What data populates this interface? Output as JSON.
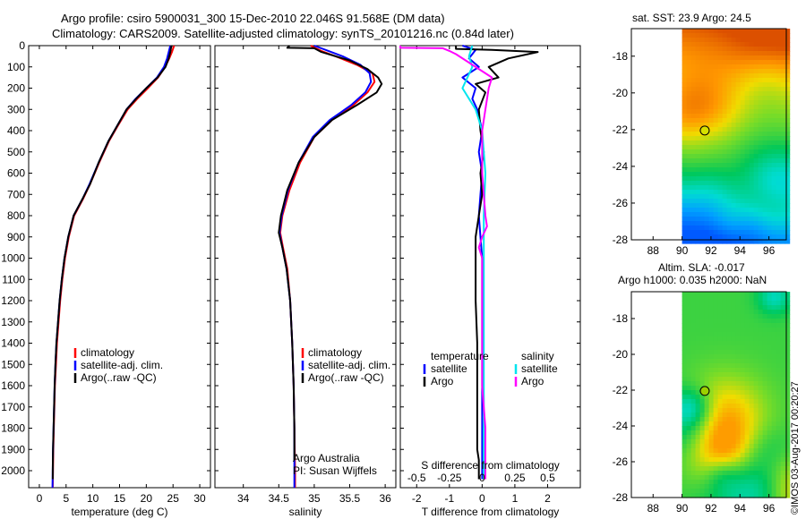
{
  "header": {
    "line1": "Argo profile: csiro 5900031_300 15-Dec-2010 22.046S 91.568E (DM data)",
    "line2": "Climatology: CARS2009. Satellite-adjusted climatology: synTS_20101216.nc (0.84d later)"
  },
  "colors": {
    "clim": "#ff0000",
    "sat": "#0000ff",
    "argo": "#000000",
    "sat_sal": "#00e5ee",
    "argo_sal": "#ff00ff"
  },
  "depth_ticks": [
    0,
    100,
    200,
    300,
    400,
    500,
    600,
    700,
    800,
    900,
    1000,
    1100,
    1200,
    1300,
    1400,
    1500,
    1600,
    1700,
    1800,
    1900,
    2000
  ],
  "chart_data": [
    {
      "id": "temperature",
      "type": "line",
      "xlabel": "temperature (deg C)",
      "ylabel": "depth",
      "xlim": [
        -2,
        32
      ],
      "ylim": [
        0,
        2080
      ],
      "xticks": [
        0,
        5,
        10,
        15,
        20,
        25,
        30
      ],
      "legend": [
        "climatology",
        "satellite-adj. clim.",
        "Argo(..raw -QC)"
      ],
      "series": [
        {
          "name": "climatology",
          "color": "#ff0000",
          "points": [
            [
              25.2,
              0
            ],
            [
              24.8,
              30
            ],
            [
              24.3,
              60
            ],
            [
              23.5,
              100
            ],
            [
              22.2,
              150
            ],
            [
              20.3,
              200
            ],
            [
              18.3,
              250
            ],
            [
              16.5,
              300
            ],
            [
              14.6,
              380
            ],
            [
              13.0,
              450
            ],
            [
              11.2,
              550
            ],
            [
              9.5,
              650
            ],
            [
              8.2,
              720
            ],
            [
              6.5,
              800
            ],
            [
              5.5,
              900
            ],
            [
              4.8,
              1000
            ],
            [
              4.3,
              1100
            ],
            [
              3.9,
              1200
            ],
            [
              3.6,
              1300
            ],
            [
              3.3,
              1400
            ],
            [
              3.1,
              1500
            ],
            [
              2.9,
              1600
            ],
            [
              2.8,
              1700
            ],
            [
              2.7,
              1800
            ],
            [
              2.6,
              1900
            ],
            [
              2.55,
              2000
            ],
            [
              2.5,
              2080
            ]
          ]
        },
        {
          "name": "satellite-adj. clim.",
          "color": "#0000ff",
          "points": [
            [
              24.5,
              0
            ],
            [
              24.2,
              30
            ],
            [
              23.9,
              60
            ],
            [
              23.3,
              100
            ],
            [
              22.0,
              150
            ],
            [
              20.0,
              200
            ],
            [
              18.0,
              250
            ],
            [
              16.3,
              300
            ],
            [
              14.5,
              380
            ],
            [
              12.9,
              450
            ],
            [
              11.1,
              550
            ],
            [
              9.4,
              650
            ],
            [
              8.1,
              720
            ],
            [
              6.4,
              800
            ],
            [
              5.4,
              900
            ],
            [
              4.7,
              1000
            ],
            [
              4.2,
              1100
            ],
            [
              3.8,
              1200
            ],
            [
              3.5,
              1300
            ],
            [
              3.2,
              1400
            ],
            [
              3.0,
              1500
            ],
            [
              2.85,
              1600
            ],
            [
              2.75,
              1700
            ],
            [
              2.65,
              1800
            ],
            [
              2.55,
              1900
            ],
            [
              2.5,
              2000
            ],
            [
              2.45,
              2080
            ]
          ]
        },
        {
          "name": "Argo(..raw -QC)",
          "color": "#000000",
          "points": [
            [
              24.7,
              0
            ],
            [
              24.5,
              30
            ],
            [
              24.2,
              60
            ],
            [
              23.6,
              100
            ],
            [
              22.1,
              150
            ],
            [
              20.0,
              200
            ],
            [
              18.1,
              250
            ],
            [
              16.3,
              300
            ],
            [
              14.5,
              380
            ],
            [
              12.9,
              450
            ],
            [
              11.1,
              550
            ],
            [
              9.5,
              650
            ],
            [
              8.1,
              720
            ],
            [
              6.4,
              800
            ],
            [
              5.4,
              900
            ],
            [
              4.7,
              1000
            ],
            [
              4.2,
              1100
            ],
            [
              3.8,
              1200
            ],
            [
              3.5,
              1300
            ],
            [
              3.2,
              1400
            ],
            [
              3.0,
              1500
            ],
            [
              2.85,
              1600
            ],
            [
              2.75,
              1700
            ],
            [
              2.65,
              1800
            ],
            [
              2.55,
              1900
            ],
            [
              2.5,
              2000
            ],
            [
              2.5,
              2040
            ]
          ]
        }
      ],
      "notes": []
    },
    {
      "id": "salinity",
      "type": "line",
      "xlabel": "salinity",
      "ylabel": "depth",
      "xlim": [
        33.6,
        36.15
      ],
      "ylim": [
        0,
        2080
      ],
      "xticks": [
        34,
        34.5,
        35,
        35.5,
        36
      ],
      "legend": [
        "climatology",
        "satellite-adj. clim.",
        "Argo(..raw -QC)"
      ],
      "series": [
        {
          "name": "climatology",
          "color": "#ff0000",
          "points": [
            [
              34.95,
              0
            ],
            [
              35.1,
              25
            ],
            [
              35.3,
              50
            ],
            [
              35.6,
              90
            ],
            [
              35.82,
              130
            ],
            [
              35.85,
              170
            ],
            [
              35.75,
              220
            ],
            [
              35.55,
              280
            ],
            [
              35.25,
              350
            ],
            [
              35.0,
              430
            ],
            [
              34.8,
              550
            ],
            [
              34.65,
              680
            ],
            [
              34.55,
              800
            ],
            [
              34.52,
              880
            ],
            [
              34.56,
              950
            ],
            [
              34.62,
              1050
            ],
            [
              34.66,
              1200
            ],
            [
              34.69,
              1400
            ],
            [
              34.71,
              1600
            ],
            [
              34.72,
              1800
            ],
            [
              34.73,
              2000
            ],
            [
              34.73,
              2080
            ]
          ]
        },
        {
          "name": "satellite-adj. clim.",
          "color": "#0000ff",
          "points": [
            [
              35.0,
              0
            ],
            [
              35.2,
              25
            ],
            [
              35.4,
              50
            ],
            [
              35.65,
              90
            ],
            [
              35.78,
              130
            ],
            [
              35.8,
              170
            ],
            [
              35.72,
              220
            ],
            [
              35.52,
              280
            ],
            [
              35.22,
              350
            ],
            [
              34.98,
              430
            ],
            [
              34.78,
              550
            ],
            [
              34.63,
              680
            ],
            [
              34.54,
              800
            ],
            [
              34.51,
              880
            ],
            [
              34.55,
              950
            ],
            [
              34.61,
              1050
            ],
            [
              34.66,
              1200
            ],
            [
              34.69,
              1400
            ],
            [
              34.71,
              1600
            ],
            [
              34.72,
              1800
            ],
            [
              34.72,
              2000
            ],
            [
              34.72,
              2080
            ]
          ]
        },
        {
          "name": "Argo(..raw -QC)",
          "color": "#000000",
          "points": [
            [
              34.65,
              0
            ],
            [
              34.62,
              10
            ],
            [
              35.0,
              12
            ],
            [
              35.1,
              30
            ],
            [
              35.5,
              70
            ],
            [
              35.75,
              110
            ],
            [
              35.9,
              150
            ],
            [
              35.95,
              180
            ],
            [
              35.88,
              220
            ],
            [
              35.6,
              280
            ],
            [
              35.25,
              350
            ],
            [
              35.0,
              430
            ],
            [
              34.78,
              550
            ],
            [
              34.62,
              680
            ],
            [
              34.53,
              800
            ],
            [
              34.5,
              880
            ],
            [
              34.55,
              950
            ],
            [
              34.61,
              1050
            ],
            [
              34.66,
              1200
            ],
            [
              34.69,
              1400
            ],
            [
              34.71,
              1600
            ],
            [
              34.72,
              1800
            ],
            [
              34.72,
              1950
            ]
          ]
        }
      ],
      "notes": [
        "Argo Australia",
        "PI: Susan Wijffels"
      ]
    },
    {
      "id": "difference",
      "type": "line",
      "xlabel": "T difference from climatology",
      "top_label": "S difference from climatology",
      "ylabel": "depth",
      "xlim": [
        -2.5,
        3
      ],
      "ylim": [
        0,
        2080
      ],
      "xticks": [
        -2,
        -1,
        0,
        1,
        2
      ],
      "top_ticks": [
        {
          "label": "-0.5",
          "x": -2
        },
        {
          "label": "-0.25",
          "x": -1
        },
        {
          "label": "0",
          "x": 0
        },
        {
          "label": "0.25",
          "x": 1
        },
        {
          "label": "0.5",
          "x": 2
        }
      ],
      "legend_temperature": [
        "temperature",
        "satellite",
        "Argo"
      ],
      "legend_salinity": [
        "salinity",
        "satellite",
        "Argo"
      ],
      "series": [
        {
          "name": "temperature satellite",
          "color": "#0000ff",
          "points": [
            [
              -0.6,
              0
            ],
            [
              -0.2,
              20
            ],
            [
              -0.4,
              60
            ],
            [
              -0.1,
              100
            ],
            [
              -0.6,
              150
            ],
            [
              -0.2,
              200
            ],
            [
              -0.3,
              250
            ],
            [
              -0.15,
              300
            ],
            [
              0.0,
              400
            ],
            [
              -0.1,
              500
            ],
            [
              0.0,
              600
            ],
            [
              -0.05,
              700
            ],
            [
              -0.1,
              800
            ],
            [
              -0.05,
              900
            ],
            [
              0.0,
              1000
            ],
            [
              0.0,
              1500
            ],
            [
              0.0,
              2000
            ],
            [
              0.0,
              2040
            ]
          ]
        },
        {
          "name": "temperature Argo",
          "color": "#000000",
          "points": [
            [
              -0.8,
              0
            ],
            [
              -0.8,
              15
            ],
            [
              0.3,
              20
            ],
            [
              1.7,
              30
            ],
            [
              0.8,
              60
            ],
            [
              0.2,
              100
            ],
            [
              0.5,
              150
            ],
            [
              -0.2,
              180
            ],
            [
              0.1,
              220
            ],
            [
              -0.1,
              300
            ],
            [
              -0.05,
              400
            ],
            [
              0.05,
              500
            ],
            [
              -0.05,
              600
            ],
            [
              0.0,
              700
            ],
            [
              -0.1,
              800
            ],
            [
              -0.2,
              900
            ],
            [
              -0.2,
              1000
            ],
            [
              -0.2,
              1200
            ],
            [
              -0.15,
              1400
            ],
            [
              -0.15,
              1600
            ],
            [
              -0.15,
              1800
            ],
            [
              -0.15,
              1900
            ],
            [
              -0.1,
              1950
            ],
            [
              -0.1,
              2040
            ]
          ]
        },
        {
          "name": "salinity satellite",
          "color": "#00e5ee",
          "points": [
            [
              -0.3,
              0
            ],
            [
              -0.4,
              50
            ],
            [
              -0.3,
              100
            ],
            [
              -0.6,
              200
            ],
            [
              -0.2,
              300
            ],
            [
              0.0,
              400
            ],
            [
              0.1,
              600
            ],
            [
              0.05,
              800
            ],
            [
              0.05,
              1000
            ],
            [
              0.05,
              1500
            ],
            [
              0.05,
              2000
            ],
            [
              0.05,
              2040
            ]
          ]
        },
        {
          "name": "salinity Argo",
          "color": "#ff00ff",
          "points": [
            [
              -2.5,
              0
            ],
            [
              -2.5,
              10
            ],
            [
              -1.2,
              12
            ],
            [
              -1.0,
              25
            ],
            [
              -0.8,
              40
            ],
            [
              -0.5,
              70
            ],
            [
              0.3,
              150
            ],
            [
              0.2,
              200
            ],
            [
              0.1,
              300
            ],
            [
              0.0,
              400
            ],
            [
              0.0,
              600
            ],
            [
              0.1,
              800
            ],
            [
              0.15,
              850
            ],
            [
              0.0,
              900
            ],
            [
              -0.1,
              950
            ],
            [
              0.0,
              1000
            ],
            [
              0.0,
              1200
            ],
            [
              0.0,
              1600
            ],
            [
              0.1,
              1800
            ],
            [
              0.1,
              2040
            ]
          ]
        }
      ],
      "notes": []
    }
  ],
  "maps": [
    {
      "id": "sst-map",
      "title": "sat. SST: 23.9 Argo: 24.5",
      "xticks": [
        "88",
        "90",
        "92",
        "94",
        "96"
      ],
      "yticks": [
        "-18",
        "-20",
        "-22",
        "-24",
        "-26",
        "-28"
      ],
      "lon_range": [
        86.5,
        97.2
      ],
      "lat_range": [
        -28,
        -16.5
      ],
      "data_lon_start": 90,
      "float_lon": 91.568,
      "float_lat": -22.046,
      "palette": "sst"
    },
    {
      "id": "sla-map",
      "title": "Altim. SLA: -0.017",
      "subtitle": "Argo h1000: 0.035 h2000: NaN",
      "xticks": [
        "88",
        "90",
        "92",
        "94",
        "96"
      ],
      "yticks": [
        "-18",
        "-20",
        "-22",
        "-24",
        "-26",
        "-28"
      ],
      "lon_range": [
        86.5,
        97.2
      ],
      "lat_range": [
        -28,
        -16.5
      ],
      "data_lon_start": 90,
      "float_lon": 91.568,
      "float_lat": -22.046,
      "palette": "sla"
    }
  ],
  "stamp": "©IMOS 03-Aug-2017 00:20:27"
}
